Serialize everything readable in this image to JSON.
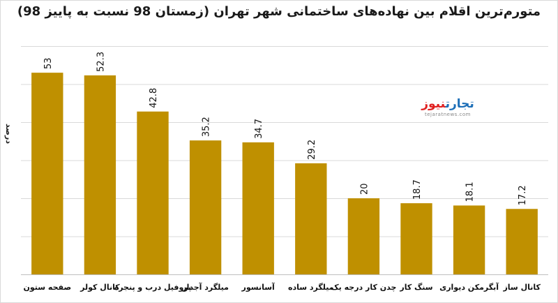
{
  "chart_data": {
    "type": "bar",
    "title": "متورم‌ترین اقلام بین نهاده‌های ساختمانی شهر تهران (زمستان 98 نسبت به پاییز 98)",
    "ylabel": "درصد",
    "categories": [
      "صفحه ستون",
      "کانال کولر",
      "پروفیل درب و پنجره",
      "میلگرد آجدار",
      "آسانسور",
      "میلگرد ساده",
      "چدن کار درجه یک",
      "سنگ کار",
      "آبگرمکن دیواری",
      "کانال ساز"
    ],
    "values": [
      53,
      52.3,
      42.8,
      35.2,
      34.7,
      29.2,
      20,
      18.7,
      18.1,
      17.2
    ],
    "value_labels": [
      "53",
      "52.3",
      "42.8",
      "35.2",
      "34.7",
      "29.2",
      "20",
      "18.7",
      "18.1",
      "17.2"
    ],
    "ylim": [
      0,
      60
    ],
    "grid": true,
    "bar_color": "#bf9000",
    "grid_color": "#d9d9d9"
  },
  "logo": {
    "part1": "تجارت",
    "part2": "نیوز",
    "url": "tejaratnews.com"
  }
}
